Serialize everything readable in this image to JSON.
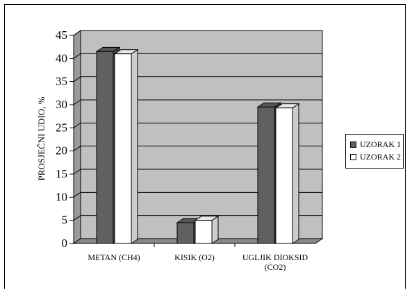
{
  "chart_data": {
    "type": "bar",
    "categories": [
      "METAN (CH4)",
      "KISIK (O2)",
      "UGLJIK DIOKSID (CO2)"
    ],
    "series": [
      {
        "name": "UZORAK 1",
        "values": [
          41.5,
          4.5,
          29.5
        ],
        "color": "#606060"
      },
      {
        "name": "UZORAK 2",
        "values": [
          41.0,
          5.0,
          29.3
        ],
        "color": "#ffffff"
      }
    ],
    "title": "",
    "xlabel": "",
    "ylabel": "PROSJEČNI UDIO, %",
    "ylim": [
      0,
      45
    ],
    "yticks": [
      0,
      5,
      10,
      15,
      20,
      25,
      30,
      35,
      40,
      45
    ],
    "grid": true,
    "legend_position": "right",
    "plot_background": "#c0c0c0",
    "three_d": true
  }
}
